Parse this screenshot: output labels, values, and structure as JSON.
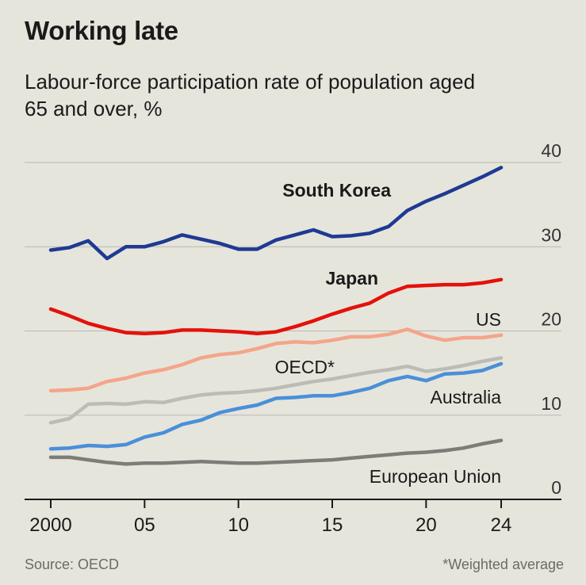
{
  "title": "Working late",
  "subtitle": "Labour-force participation rate of population aged 65 and over, %",
  "source": "Source: OECD",
  "footnote": "*Weighted average",
  "chart_data": {
    "type": "line",
    "ylabel": "",
    "xlabel": "",
    "ylim": [
      0,
      40
    ],
    "xlim": [
      2000,
      2024
    ],
    "y_ticks": [
      0,
      10,
      20,
      30,
      40
    ],
    "x_ticks": [
      {
        "value": 2000,
        "label": "2000"
      },
      {
        "value": 2005,
        "label": "05"
      },
      {
        "value": 2010,
        "label": "10"
      },
      {
        "value": 2015,
        "label": "15"
      },
      {
        "value": 2020,
        "label": "20"
      },
      {
        "value": 2024,
        "label": "24"
      }
    ],
    "grid": true,
    "x": [
      2000,
      2001,
      2002,
      2003,
      2004,
      2005,
      2006,
      2007,
      2008,
      2009,
      2010,
      2011,
      2012,
      2013,
      2014,
      2015,
      2016,
      2017,
      2018,
      2019,
      2020,
      2021,
      2022,
      2023,
      2024
    ],
    "series": [
      {
        "name": "South Korea",
        "color": "#1f3a93",
        "bold": true,
        "values": [
          29.6,
          29.9,
          30.7,
          28.6,
          30.0,
          30.0,
          30.6,
          31.4,
          30.9,
          30.4,
          29.7,
          29.7,
          30.8,
          31.4,
          32.0,
          31.2,
          31.3,
          31.6,
          32.4,
          34.3,
          35.4,
          36.3,
          37.3,
          38.3,
          39.4
        ]
      },
      {
        "name": "Japan",
        "color": "#e3120b",
        "bold": true,
        "values": [
          22.6,
          21.8,
          20.9,
          20.3,
          19.8,
          19.7,
          19.8,
          20.1,
          20.1,
          20.0,
          19.9,
          19.7,
          19.9,
          20.5,
          21.2,
          22.0,
          22.7,
          23.3,
          24.5,
          25.3,
          25.4,
          25.5,
          25.5,
          25.7,
          26.1
        ]
      },
      {
        "name": "US",
        "color": "#f4a58a",
        "bold": false,
        "values": [
          12.9,
          13.0,
          13.2,
          14.0,
          14.4,
          15.0,
          15.4,
          16.0,
          16.8,
          17.2,
          17.4,
          17.9,
          18.5,
          18.7,
          18.6,
          18.9,
          19.3,
          19.3,
          19.6,
          20.2,
          19.4,
          18.9,
          19.2,
          19.2,
          19.5
        ]
      },
      {
        "name": "OECD*",
        "color": "#bcbcb6",
        "bold": false,
        "values": [
          9.1,
          9.6,
          11.3,
          11.4,
          11.3,
          11.6,
          11.5,
          12.0,
          12.4,
          12.6,
          12.7,
          12.9,
          13.2,
          13.6,
          14.0,
          14.3,
          14.7,
          15.1,
          15.4,
          15.8,
          15.2,
          15.5,
          15.9,
          16.4,
          16.8
        ]
      },
      {
        "name": "Australia",
        "color": "#4a8fd9",
        "bold": false,
        "values": [
          6.0,
          6.1,
          6.4,
          6.3,
          6.5,
          7.4,
          7.9,
          8.9,
          9.4,
          10.3,
          10.8,
          11.2,
          12.0,
          12.1,
          12.3,
          12.3,
          12.7,
          13.2,
          14.1,
          14.6,
          14.1,
          14.9,
          15.0,
          15.3,
          16.1
        ]
      },
      {
        "name": "European Union",
        "color": "#7d7d78",
        "bold": false,
        "values": [
          5.0,
          5.0,
          4.7,
          4.4,
          4.2,
          4.3,
          4.3,
          4.4,
          4.5,
          4.4,
          4.3,
          4.3,
          4.4,
          4.5,
          4.6,
          4.7,
          4.9,
          5.1,
          5.3,
          5.5,
          5.6,
          5.8,
          6.1,
          6.6,
          7.0
        ]
      }
    ],
    "labels": [
      {
        "series": "South Korea",
        "text": "South Korea"
      },
      {
        "series": "Japan",
        "text": "Japan"
      },
      {
        "series": "US",
        "text": "US"
      },
      {
        "series": "OECD*",
        "text": "OECD*"
      },
      {
        "series": "Australia",
        "text": "Australia"
      },
      {
        "series": "European Union",
        "text": "European Union"
      }
    ]
  }
}
